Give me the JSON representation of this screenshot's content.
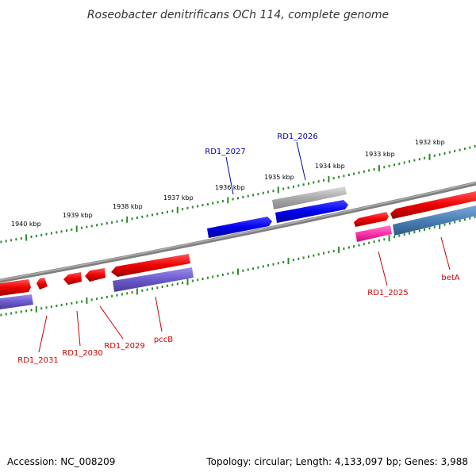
{
  "title": "Roseobacter denitrificans OCh 114, complete genome",
  "footer": {
    "accession": "Accession: NC_008209",
    "topology": "Topology: circular; Length: 4,133,097 bp; Genes: 3,988"
  },
  "ruler_labels": [
    "1940 kbp",
    "1939 kbp",
    "1938 kbp",
    "1937 kbp",
    "1936 kbp",
    "1935 kbp",
    "1934 kbp",
    "1933 kbp",
    "1932 kbp"
  ],
  "gene_labels": {
    "rd1_2027": "RD1_2027",
    "rd1_2026": "RD1_2026",
    "rd1_2025": "RD1_2025",
    "beta": "betA",
    "rd1_2031": "RD1_2031",
    "rd1_2030": "RD1_2030",
    "rd1_2029": "RD1_2029",
    "pccb": "pccB"
  },
  "colors": {
    "backbone": "#808080",
    "cds_forward": "#0000ee",
    "cds_reverse": "#ee0000",
    "other_feature": "#aaaaaa",
    "label_forward": "#0000aa",
    "label_reverse": "#cc0000",
    "tick": "#2a8a2a",
    "rna": "#6a5acd",
    "highlight": "#ff33aa",
    "steelblue": "#4a7fb5"
  }
}
